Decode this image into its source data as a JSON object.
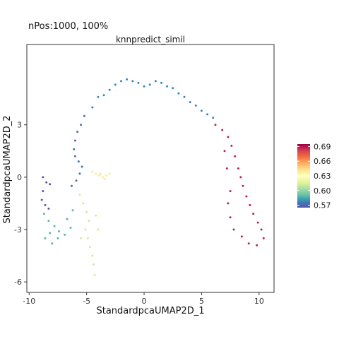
{
  "header": "nPos:1000, 100%",
  "chart_data": {
    "type": "scatter",
    "title": "knnpredict_simil",
    "xlabel": "StandardpcaUMAP2D_1",
    "ylabel": "StandardpcaUMAP2D_2",
    "xlim": [
      -10.2,
      11.3
    ],
    "ylim": [
      -6.6,
      7.6
    ],
    "xticks": [
      -10,
      -5,
      0,
      5,
      10
    ],
    "xtick_labels": [
      "-10",
      "-5",
      "0",
      "5",
      "10"
    ],
    "yticks": [
      -6,
      -3,
      0,
      3
    ],
    "ytick_labels": [
      "-6",
      "-3",
      "0",
      "3"
    ],
    "grid": false,
    "legend": {
      "placement": "right",
      "range": [
        0.565,
        0.695
      ],
      "ticks": [
        0.57,
        0.6,
        0.63,
        0.66,
        0.69
      ],
      "tick_labels": [
        "0.57",
        "0.60",
        "0.63",
        "0.66",
        "0.69"
      ],
      "colormap": [
        "#5e4fa2",
        "#3288bd",
        "#66c2a5",
        "#abdda4",
        "#e6f598",
        "#ffffbf",
        "#fee08b",
        "#fdae61",
        "#f46d43",
        "#d53e4f",
        "#9e0142"
      ]
    },
    "series": [
      {
        "region": "arc-top",
        "points": [
          [
            -4.5,
            4.0
          ],
          [
            -4.0,
            4.6
          ],
          [
            -3.5,
            4.7
          ],
          [
            -3.0,
            5.0
          ],
          [
            -2.5,
            5.3
          ],
          [
            -2.0,
            5.5
          ],
          [
            -1.5,
            5.6
          ],
          [
            -1.0,
            5.5
          ],
          [
            -0.5,
            5.4
          ],
          [
            0.0,
            5.2
          ],
          [
            0.5,
            5.3
          ],
          [
            1.0,
            5.5
          ],
          [
            1.5,
            5.4
          ],
          [
            2.0,
            5.2
          ],
          [
            2.5,
            5.1
          ],
          [
            3.0,
            4.8
          ],
          [
            3.5,
            4.6
          ],
          [
            4.0,
            4.3
          ],
          [
            4.5,
            4.1
          ],
          [
            5.0,
            3.8
          ],
          [
            5.5,
            3.6
          ],
          [
            6.0,
            3.4
          ]
        ],
        "value": 0.578
      },
      {
        "region": "left-upper-arm",
        "points": [
          [
            -5.2,
            3.5
          ],
          [
            -5.5,
            3.0
          ],
          [
            -5.8,
            2.6
          ],
          [
            -6.0,
            2.1
          ],
          [
            -6.1,
            1.6
          ],
          [
            -6.0,
            1.2
          ],
          [
            -5.7,
            0.9
          ],
          [
            -5.4,
            0.6
          ],
          [
            -5.6,
            0.2
          ],
          [
            -5.9,
            -0.2
          ],
          [
            -6.3,
            -0.5
          ]
        ],
        "value": 0.572
      },
      {
        "region": "far-left-tip",
        "points": [
          [
            -8.8,
            0.0
          ],
          [
            -8.5,
            -0.3
          ],
          [
            -8.2,
            -0.4
          ],
          [
            -8.8,
            -0.8
          ],
          [
            -8.9,
            -1.3
          ],
          [
            -8.6,
            -1.6
          ],
          [
            -8.3,
            -1.8
          ]
        ],
        "value": 0.566
      },
      {
        "region": "left-lower-cluster",
        "points": [
          [
            -8.7,
            -2.1
          ],
          [
            -8.3,
            -2.5
          ],
          [
            -7.8,
            -2.8
          ],
          [
            -7.4,
            -3.1
          ],
          [
            -8.2,
            -3.2
          ],
          [
            -8.6,
            -3.5
          ],
          [
            -8.0,
            -3.8
          ],
          [
            -7.5,
            -3.5
          ],
          [
            -6.9,
            -3.3
          ],
          [
            -6.4,
            -2.9
          ],
          [
            -6.7,
            -2.4
          ],
          [
            -6.2,
            -1.9
          ]
        ],
        "value": 0.588
      },
      {
        "region": "green-column",
        "points": [
          [
            -5.6,
            -1.0
          ],
          [
            -5.3,
            -1.5
          ],
          [
            -5.0,
            -2.0
          ],
          [
            -4.8,
            -2.5
          ],
          [
            -5.1,
            -3.0
          ],
          [
            -4.9,
            -3.5
          ],
          [
            -4.7,
            -4.0
          ],
          [
            -4.5,
            -4.5
          ],
          [
            -4.4,
            -5.0
          ],
          [
            -4.3,
            -5.6
          ],
          [
            -4.0,
            -3.0
          ],
          [
            -4.2,
            -2.2
          ],
          [
            -5.5,
            -3.5
          ]
        ],
        "value": 0.612
      },
      {
        "region": "yellow-patch",
        "points": [
          [
            -4.5,
            0.3
          ],
          [
            -4.2,
            0.2
          ],
          [
            -3.9,
            0.1
          ],
          [
            -3.6,
            0.0
          ],
          [
            -3.3,
            0.1
          ],
          [
            -3.0,
            0.2
          ],
          [
            -3.4,
            -0.1
          ],
          [
            -3.8,
            0.2
          ]
        ],
        "value": 0.64
      },
      {
        "region": "right-arm",
        "points": [
          [
            6.2,
            3.0
          ],
          [
            6.8,
            2.7
          ],
          [
            7.3,
            2.3
          ],
          [
            7.6,
            1.8
          ],
          [
            7.9,
            1.2
          ],
          [
            8.2,
            0.5
          ],
          [
            8.4,
            0.0
          ],
          [
            8.6,
            -0.5
          ],
          [
            8.9,
            -1.1
          ],
          [
            9.2,
            -1.6
          ],
          [
            9.5,
            -2.1
          ],
          [
            9.9,
            -2.6
          ],
          [
            10.2,
            -3.0
          ],
          [
            10.4,
            -3.5
          ],
          [
            9.8,
            -3.9
          ],
          [
            9.1,
            -3.8
          ],
          [
            8.5,
            -3.4
          ],
          [
            7.8,
            -3.0
          ],
          [
            7.5,
            -2.3
          ],
          [
            7.3,
            -1.5
          ],
          [
            7.5,
            -0.8
          ],
          [
            7.2,
            0.5
          ],
          [
            7.0,
            1.5
          ]
        ],
        "value": 0.688
      }
    ]
  }
}
